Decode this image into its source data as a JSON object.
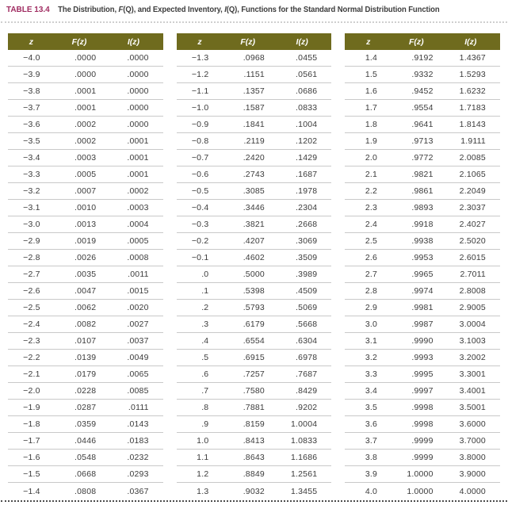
{
  "title": {
    "label": "TABLE 13.4",
    "segments": [
      "The Distribution, ",
      "F",
      "(Q), and Expected Inventory, ",
      "I",
      "(Q), Functions for the Standard Normal Distribution Function"
    ]
  },
  "colors": {
    "header_bg": "#6f6b1e",
    "header_text": "#ffffff",
    "title_label": "#a02d62",
    "title_text": "#3d3d3d",
    "body_text": "#3b3b3b",
    "row_divider": "#c9c9c9",
    "dotted_rule_bottom": "#4c4c4c",
    "dotted_rule_top": "#cfcfcf"
  },
  "tables": [
    {
      "columns": [
        "z",
        "F(z)",
        "I(z)"
      ],
      "rows": [
        [
          "−4.0",
          ".0000",
          ".0000"
        ],
        [
          "−3.9",
          ".0000",
          ".0000"
        ],
        [
          "−3.8",
          ".0001",
          ".0000"
        ],
        [
          "−3.7",
          ".0001",
          ".0000"
        ],
        [
          "−3.6",
          ".0002",
          ".0000"
        ],
        [
          "−3.5",
          ".0002",
          ".0001"
        ],
        [
          "−3.4",
          ".0003",
          ".0001"
        ],
        [
          "−3.3",
          ".0005",
          ".0001"
        ],
        [
          "−3.2",
          ".0007",
          ".0002"
        ],
        [
          "−3.1",
          ".0010",
          ".0003"
        ],
        [
          "−3.0",
          ".0013",
          ".0004"
        ],
        [
          "−2.9",
          ".0019",
          ".0005"
        ],
        [
          "−2.8",
          ".0026",
          ".0008"
        ],
        [
          "−2.7",
          ".0035",
          ".0011"
        ],
        [
          "−2.6",
          ".0047",
          ".0015"
        ],
        [
          "−2.5",
          ".0062",
          ".0020"
        ],
        [
          "−2.4",
          ".0082",
          ".0027"
        ],
        [
          "−2.3",
          ".0107",
          ".0037"
        ],
        [
          "−2.2",
          ".0139",
          ".0049"
        ],
        [
          "−2.1",
          ".0179",
          ".0065"
        ],
        [
          "−2.0",
          ".0228",
          ".0085"
        ],
        [
          "−1.9",
          ".0287",
          ".0111"
        ],
        [
          "−1.8",
          ".0359",
          ".0143"
        ],
        [
          "−1.7",
          ".0446",
          ".0183"
        ],
        [
          "−1.6",
          ".0548",
          ".0232"
        ],
        [
          "−1.5",
          ".0668",
          ".0293"
        ],
        [
          "−1.4",
          ".0808",
          ".0367"
        ]
      ]
    },
    {
      "columns": [
        "z",
        "F(z)",
        "I(z)"
      ],
      "rows": [
        [
          "−1.3",
          ".0968",
          ".0455"
        ],
        [
          "−1.2",
          ".1151",
          ".0561"
        ],
        [
          "−1.1",
          ".1357",
          ".0686"
        ],
        [
          "−1.0",
          ".1587",
          ".0833"
        ],
        [
          "−0.9",
          ".1841",
          ".1004"
        ],
        [
          "−0.8",
          ".2119",
          ".1202"
        ],
        [
          "−0.7",
          ".2420",
          ".1429"
        ],
        [
          "−0.6",
          ".2743",
          ".1687"
        ],
        [
          "−0.5",
          ".3085",
          ".1978"
        ],
        [
          "−0.4",
          ".3446",
          ".2304"
        ],
        [
          "−0.3",
          ".3821",
          ".2668"
        ],
        [
          "−0.2",
          ".4207",
          ".3069"
        ],
        [
          "−0.1",
          ".4602",
          ".3509"
        ],
        [
          ".0",
          ".5000",
          ".3989"
        ],
        [
          ".1",
          ".5398",
          ".4509"
        ],
        [
          ".2",
          ".5793",
          ".5069"
        ],
        [
          ".3",
          ".6179",
          ".5668"
        ],
        [
          ".4",
          ".6554",
          ".6304"
        ],
        [
          ".5",
          ".6915",
          ".6978"
        ],
        [
          ".6",
          ".7257",
          ".7687"
        ],
        [
          ".7",
          ".7580",
          ".8429"
        ],
        [
          ".8",
          ".7881",
          ".9202"
        ],
        [
          ".9",
          ".8159",
          "1.0004"
        ],
        [
          "1.0",
          ".8413",
          "1.0833"
        ],
        [
          "1.1",
          ".8643",
          "1.1686"
        ],
        [
          "1.2",
          ".8849",
          "1.2561"
        ],
        [
          "1.3",
          ".9032",
          "1.3455"
        ]
      ]
    },
    {
      "columns": [
        "z",
        "F(z)",
        "I(z)"
      ],
      "rows": [
        [
          "1.4",
          ".9192",
          "1.4367"
        ],
        [
          "1.5",
          ".9332",
          "1.5293"
        ],
        [
          "1.6",
          ".9452",
          "1.6232"
        ],
        [
          "1.7",
          ".9554",
          "1.7183"
        ],
        [
          "1.8",
          ".9641",
          "1.8143"
        ],
        [
          "1.9",
          ".9713",
          "1.9111"
        ],
        [
          "2.0",
          ".9772",
          "2.0085"
        ],
        [
          "2.1",
          ".9821",
          "2.1065"
        ],
        [
          "2.2",
          ".9861",
          "2.2049"
        ],
        [
          "2.3",
          ".9893",
          "2.3037"
        ],
        [
          "2.4",
          ".9918",
          "2.4027"
        ],
        [
          "2.5",
          ".9938",
          "2.5020"
        ],
        [
          "2.6",
          ".9953",
          "2.6015"
        ],
        [
          "2.7",
          ".9965",
          "2.7011"
        ],
        [
          "2.8",
          ".9974",
          "2.8008"
        ],
        [
          "2.9",
          ".9981",
          "2.9005"
        ],
        [
          "3.0",
          ".9987",
          "3.0004"
        ],
        [
          "3.1",
          ".9990",
          "3.1003"
        ],
        [
          "3.2",
          ".9993",
          "3.2002"
        ],
        [
          "3.3",
          ".9995",
          "3.3001"
        ],
        [
          "3.4",
          ".9997",
          "3.4001"
        ],
        [
          "3.5",
          ".9998",
          "3.5001"
        ],
        [
          "3.6",
          ".9998",
          "3.6000"
        ],
        [
          "3.7",
          ".9999",
          "3.7000"
        ],
        [
          "3.8",
          ".9999",
          "3.8000"
        ],
        [
          "3.9",
          "1.0000",
          "3.9000"
        ],
        [
          "4.0",
          "1.0000",
          "4.0000"
        ]
      ]
    }
  ]
}
